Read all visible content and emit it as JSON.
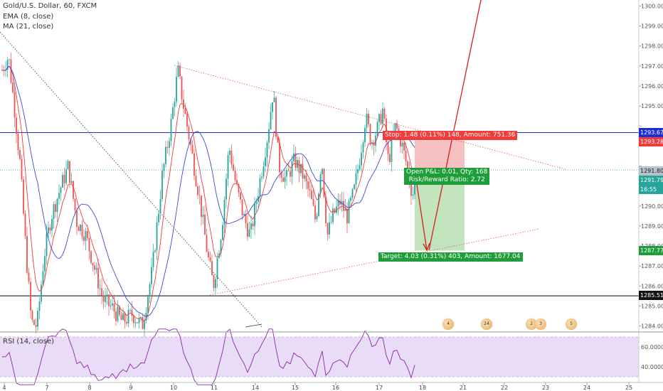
{
  "legend": {
    "title": "Gold/U.S. Dollar, 60, FXCM",
    "ema": "EMA (8, close)",
    "ma": "MA (21, close)",
    "rsi": "RSI (14, close)"
  },
  "position": {
    "stop_label": "Stop: 1.48 (0.11%) 148, Amount: 751.36",
    "open_label": "Open P&L: 0.01, Qty: 168",
    "rr_label": "Risk/Reward Ratio: 2.72",
    "target_label": "Target: 4.03 (0.31%) 403, Amount: 1677.04",
    "stop_price": 1293.28,
    "entry_price": 1291.8,
    "target_price": 1287.77
  },
  "price_tags": {
    "blue_line": "1293.67",
    "stop": "1293.28",
    "last": "1291.80",
    "current": "1291.79",
    "countdown": "16:55",
    "target": "1287.77",
    "black_line": "1285.51"
  },
  "events": [
    "4",
    "24",
    "2",
    "3",
    "5"
  ],
  "colors": {
    "up": "#26a69a",
    "down": "#ef5350",
    "ema": "#ef3b3b",
    "ma": "#3b4bd1",
    "stop_zone": "#f5b5b5",
    "target_zone": "#b7dfb2",
    "rsi_band": "#e9dcf7",
    "rsi_line": "#8e24aa",
    "blue_line": "#1e2fd6"
  },
  "chart_data": {
    "type": "candlestick",
    "title": "Gold/U.S. Dollar, 60, FXCM",
    "y_axis": {
      "ticks": [
        1284.0,
        1285.0,
        1286.0,
        1287.0,
        1288.0,
        1289.0,
        1290.0,
        1291.0,
        1292.0,
        1293.0,
        1294.0,
        1295.0,
        1296.0,
        1297.0,
        1298.0,
        1299.0,
        1300.0
      ],
      "tick_labels": [
        "1284.00",
        "1285.00",
        "1286.00",
        "1287.00",
        "1288.00",
        "1289.00",
        "1290.00",
        "",
        "",
        "",
        "",
        "1295.00",
        "1296.00",
        "1297.00",
        "1298.00",
        "1299.00",
        "1300.00"
      ],
      "range": [
        1283.7,
        1300.3
      ]
    },
    "x_axis": {
      "tick_labels": [
        "4",
        "7",
        "8",
        "9",
        "10",
        "11",
        "14",
        "15",
        "16",
        "17",
        "18",
        "21",
        "22",
        "23",
        "24",
        "25"
      ]
    },
    "horizontal_lines": [
      {
        "price": 1293.67,
        "color": "#1e2fd6"
      },
      {
        "price": 1291.8,
        "color": "#26a69a",
        "dotted": true
      },
      {
        "price": 1285.51,
        "color": "#000000"
      }
    ],
    "rsi": {
      "ticks": [
        60.0,
        40.0
      ],
      "tick_labels": [
        "60.0000",
        "40.0000"
      ]
    }
  }
}
